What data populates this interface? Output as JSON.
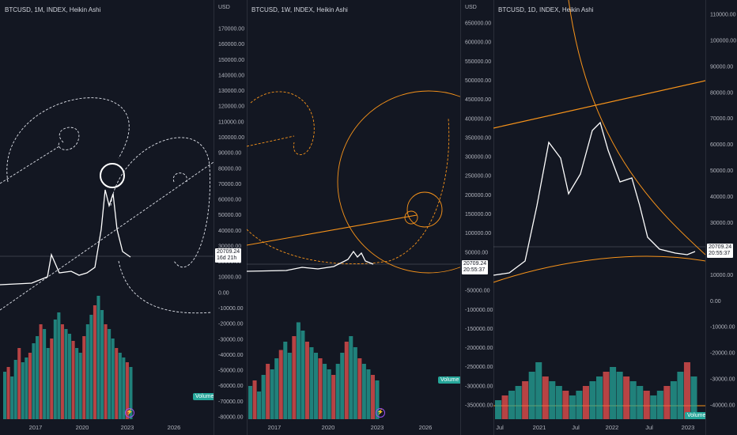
{
  "panels": [
    {
      "title": "BTCUSD, 1M, INDEX, Heikin Ashi",
      "currency": "USD",
      "y_ticks": [
        "170000.00",
        "160000.00",
        "150000.00",
        "140000.00",
        "130000.00",
        "120000.00",
        "110000.00",
        "100000.00",
        "90000.00",
        "80000.00",
        "70000.00",
        "60000.00",
        "50000.00",
        "40000.00",
        "30000.00",
        "20000.00",
        "10000.00",
        "0.00",
        "-10000.00",
        "-20000.00",
        "-30000.00",
        "-40000.00",
        "-50000.00",
        "-60000.00",
        "-70000.00",
        "-80000.00"
      ],
      "x_ticks": [
        "2017",
        "2020",
        "2023",
        "2026"
      ],
      "price_label": "20709.24",
      "countdown": "16d 21h",
      "volume_label": "Volume"
    },
    {
      "title": "BTCUSD, 1W, INDEX, Heikin Ashi",
      "currency": "USD",
      "y_ticks": [
        "650000.00",
        "600000.00",
        "550000.00",
        "500000.00",
        "450000.00",
        "400000.00",
        "350000.00",
        "300000.00",
        "250000.00",
        "200000.00",
        "150000.00",
        "100000.00",
        "50000.00",
        "0.00",
        "-50000.00",
        "-100000.00",
        "-150000.00",
        "-200000.00",
        "-250000.00",
        "-300000.00",
        "-350000.00"
      ],
      "x_ticks": [
        "2017",
        "2020",
        "2023",
        "2026"
      ],
      "price_label": "20709.24",
      "countdown": "20:55:37",
      "volume_label": "Volume"
    },
    {
      "title": "BTCUSD, 1D, INDEX, Heikin Ashi",
      "currency": "USD",
      "y_ticks": [
        "110000.00",
        "100000.00",
        "90000.00",
        "80000.00",
        "70000.00",
        "60000.00",
        "50000.00",
        "40000.00",
        "30000.00",
        "20000.00",
        "10000.00",
        "0.00",
        "-10000.00",
        "-20000.00",
        "-30000.00",
        "-40000.00"
      ],
      "x_ticks": [
        "Jul",
        "2021",
        "Jul",
        "2022",
        "Jul",
        "2023"
      ],
      "price_label": "20709.24",
      "countdown": "20:55:37",
      "volume_label": "Volume"
    }
  ],
  "colors": {
    "background": "#131722",
    "up": "#26a69a",
    "down": "#ef5350",
    "fib": "#f7931a",
    "drawing": "#ffffff"
  },
  "chart_data": [
    {
      "type": "line",
      "series": [
        {
          "x": [
            "2014",
            "2015",
            "2016",
            "2017",
            "2018",
            "2019",
            "2020",
            "2021",
            "2022",
            "2023"
          ],
          "values": [
            500,
            300,
            700,
            13000,
            4000,
            7000,
            9000,
            58000,
            20000,
            20709
          ]
        }
      ],
      "volume": [
        20,
        22,
        18,
        25,
        30,
        24,
        26,
        28,
        32,
        35,
        40,
        38,
        30,
        34,
        42,
        45,
        40,
        38,
        36,
        33,
        30,
        28,
        35,
        40,
        44,
        48,
        52,
        46,
        40,
        38,
        34,
        30,
        28,
        26,
        24,
        22
      ],
      "xlabel": "",
      "ylabel": "USD",
      "ylim": [
        -80000,
        170000
      ]
    },
    {
      "type": "line",
      "series": [
        {
          "x": [
            "2014",
            "2015",
            "2016",
            "2017",
            "2018",
            "2019",
            "2020",
            "2021",
            "2022",
            "2023"
          ],
          "values": [
            500,
            300,
            700,
            13000,
            4000,
            7000,
            9000,
            58000,
            20000,
            20709
          ]
        }
      ],
      "volume": [
        12,
        14,
        10,
        16,
        20,
        18,
        22,
        25,
        28,
        24,
        30,
        35,
        32,
        28,
        26,
        24,
        22,
        20,
        18,
        16,
        20,
        24,
        28,
        30,
        26,
        22,
        20,
        18,
        16,
        14
      ],
      "xlabel": "",
      "ylabel": "USD",
      "ylim": [
        -350000,
        650000
      ]
    },
    {
      "type": "line",
      "series": [
        {
          "x": [
            "2020-07",
            "2020-10",
            "2021-01",
            "2021-04",
            "2021-07",
            "2021-11",
            "2022-01",
            "2022-04",
            "2022-07",
            "2022-10",
            "2023-01"
          ],
          "values": [
            9500,
            11000,
            35000,
            58000,
            33000,
            67000,
            42000,
            45000,
            21000,
            19500,
            20709
          ]
        }
      ],
      "volume": [
        8,
        10,
        12,
        14,
        16,
        20,
        24,
        18,
        16,
        14,
        12,
        10,
        12,
        14,
        16,
        18,
        20,
        22,
        20,
        18,
        16,
        14,
        12,
        10,
        12,
        14,
        16,
        20,
        24,
        18
      ],
      "xlabel": "",
      "ylabel": "USD",
      "ylim": [
        -40000,
        110000
      ]
    }
  ]
}
